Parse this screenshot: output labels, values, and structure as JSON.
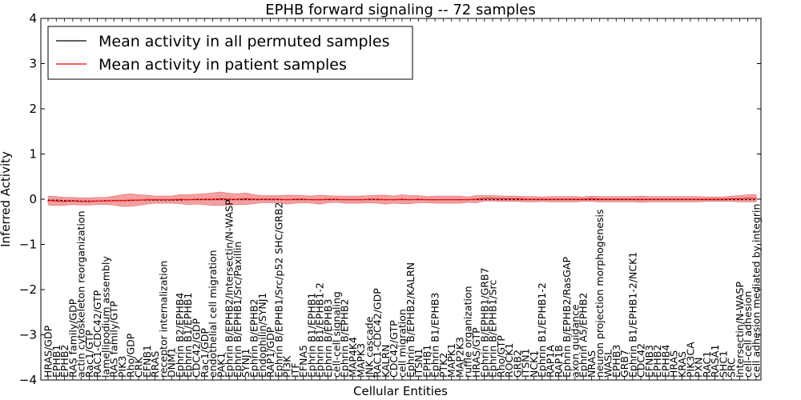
{
  "chart_data": {
    "type": "line",
    "title": "EPHB forward signaling -- 72 samples",
    "xlabel": "Cellular Entities",
    "ylabel": "Inferred Activity",
    "ylim": [
      -4,
      4
    ],
    "yticks": [
      -4,
      -3,
      -2,
      -1,
      0,
      1,
      2,
      3,
      4
    ],
    "ytick_labels": [
      "−4",
      "−3",
      "−2",
      "−1",
      "0",
      "1",
      "2",
      "3",
      "4"
    ],
    "grid": false,
    "legend_position": "upper-left",
    "colors": {
      "permuted": "#000000",
      "patient": "#ff0000",
      "band": "#f08080"
    },
    "categories": [
      "HRAS/GDP",
      "EPHB1",
      "EPHB2",
      "RAS family/GDP",
      "actin cytoskeleton reorganization",
      "Rac1/GTP",
      "RAC1-CDC42/GTP",
      "lamellipodium assembly",
      "RAS family/GTP",
      "PIK3",
      "Rho/GDP",
      "CRK",
      "EFNB1",
      "RRAS",
      "receptor internalization",
      "DNM1",
      "Ephrin B2/EPHB4",
      "Ephrin B1/EPHB1",
      "CDC42/GDP",
      "Rac1/GDP",
      "endothelial cell migration",
      "PAK1",
      "Ephrin B/EPHB2/Intersectin/N-WASP",
      "Ephrin B/EPHB1/Src/Paxillin",
      "SYNJ1",
      "Ephrin B/EPHB2",
      "Endophilin/SYNJ1",
      "RAP1/GDP",
      "Ephrin B/EPHB1/Src/p52 SHC/GRB2",
      "PI3K",
      "ITF",
      "EFNA5",
      "Ephrin B1/EPHB1",
      "Ephrin B1/EPHB1-2",
      "Ephrin B/EPHB3",
      "cell-cell signaling",
      "Ephrin B/EPHB2",
      "MAP4K4",
      "MAPK3",
      "JNK cascade",
      "RAC1-CDC42/GDP",
      "KALRN",
      "CDC42/GTP",
      "cell migration",
      "Ephrin B/EPHB2/KALRN",
      "ITSN1",
      "EPHB1",
      "Ephrin B1/EPHB3",
      "PTK2",
      "MAPK1",
      "MAP2K3",
      "ruffle organization",
      "HRAS/GTP",
      "Ephrin B/EPHB1/GRB7",
      "Ephrin B/EPHB1/Src",
      "Rho/GTP",
      "ROCK1",
      "GRB2",
      "ITSN1",
      "NCK1",
      "Ephrin B1/EPHB1-2",
      "RAP1A",
      "RAP1B",
      "Ephrin B/EPHB2/RasGAP",
      "axon guidance",
      "Ephrin A5/EPHB2",
      "NRAS",
      "neuron projection morphogenesis",
      "WASL",
      "EPHB3",
      "GRB7",
      "Ephrin B1/EPHB1-2/NCK1",
      "CDC42",
      "EFNB3",
      "EPHB2",
      "EPHB4",
      "HRAS",
      "KRAS",
      "PIK3CA",
      "PXN",
      "RAC1",
      "RASA1",
      "SHC1",
      "SRC",
      "Intersectin/N-WASP",
      "cell-cell adhesion",
      "cell adhesion mediated by integrin"
    ],
    "series": [
      {
        "name": "Mean activity in all permuted samples",
        "values": [
          -0.02,
          -0.02,
          -0.03,
          -0.03,
          -0.04,
          -0.04,
          -0.04,
          -0.03,
          -0.03,
          -0.03,
          -0.03,
          -0.02,
          -0.02,
          -0.02,
          -0.02,
          -0.02,
          -0.02,
          -0.01,
          -0.01,
          -0.01,
          -0.01,
          -0.01,
          -0.01,
          -0.01,
          -0.01,
          -0.01,
          -0.01,
          -0.01,
          -0.01,
          -0.01,
          -0.01,
          -0.01,
          -0.01,
          -0.01,
          -0.01,
          -0.01,
          -0.01,
          -0.01,
          -0.01,
          -0.01,
          -0.01,
          -0.01,
          -0.01,
          -0.01,
          -0.01,
          -0.01,
          -0.01,
          -0.01,
          -0.01,
          -0.01,
          -0.01,
          -0.01,
          -0.01,
          -0.01,
          -0.01,
          -0.01,
          -0.01,
          -0.01,
          -0.01,
          -0.01,
          -0.01,
          -0.01,
          -0.01,
          -0.01,
          -0.01,
          -0.01,
          -0.01,
          -0.01,
          -0.01,
          -0.01,
          -0.01,
          -0.01,
          -0.01,
          -0.01,
          -0.01,
          -0.01,
          -0.01,
          -0.01,
          -0.01,
          -0.01,
          -0.01,
          -0.01,
          -0.01,
          -0.01,
          -0.01,
          -0.01,
          -0.01
        ]
      },
      {
        "name": "Mean activity in patient samples",
        "values": [
          -0.03,
          -0.04,
          -0.05,
          -0.04,
          -0.05,
          -0.05,
          -0.04,
          -0.04,
          -0.03,
          -0.03,
          -0.02,
          -0.02,
          -0.01,
          -0.01,
          -0.01,
          -0.01,
          0.0,
          -0.01,
          0.0,
          0.0,
          0.0,
          0.01,
          0.0,
          0.0,
          0.01,
          0.0,
          0.0,
          0.0,
          0.0,
          -0.01,
          0.0,
          0.0,
          -0.01,
          -0.01,
          0.0,
          0.0,
          -0.01,
          -0.01,
          -0.01,
          0.0,
          0.0,
          -0.01,
          -0.01,
          0.0,
          -0.01,
          0.0,
          -0.01,
          -0.01,
          -0.01,
          -0.01,
          -0.01,
          -0.01,
          0.0,
          0.02,
          0.02,
          0.01,
          0.01,
          0.01,
          0.0,
          0.0,
          0.0,
          0.0,
          0.0,
          0.0,
          0.0,
          0.0,
          0.01,
          0.0,
          0.0,
          0.0,
          0.0,
          0.0,
          0.0,
          0.0,
          0.0,
          0.0,
          0.0,
          0.0,
          0.0,
          0.0,
          0.0,
          0.0,
          0.0,
          0.01,
          0.01,
          0.02,
          0.02
        ],
        "spread": [
          0.1,
          0.1,
          0.09,
          0.08,
          0.08,
          0.08,
          0.08,
          0.08,
          0.1,
          0.13,
          0.14,
          0.12,
          0.1,
          0.08,
          0.08,
          0.08,
          0.1,
          0.11,
          0.11,
          0.12,
          0.14,
          0.15,
          0.13,
          0.12,
          0.13,
          0.1,
          0.08,
          0.08,
          0.08,
          0.1,
          0.09,
          0.08,
          0.08,
          0.1,
          0.08,
          0.07,
          0.08,
          0.08,
          0.08,
          0.08,
          0.09,
          0.1,
          0.08,
          0.1,
          0.09,
          0.08,
          0.07,
          0.08,
          0.08,
          0.08,
          0.08,
          0.06,
          0.08,
          0.06,
          0.06,
          0.06,
          0.06,
          0.06,
          0.06,
          0.06,
          0.05,
          0.06,
          0.06,
          0.06,
          0.06,
          0.05,
          0.06,
          0.06,
          0.06,
          0.06,
          0.06,
          0.06,
          0.07,
          0.06,
          0.06,
          0.06,
          0.06,
          0.06,
          0.06,
          0.06,
          0.05,
          0.05,
          0.05,
          0.06,
          0.07,
          0.08,
          0.08
        ]
      }
    ]
  }
}
